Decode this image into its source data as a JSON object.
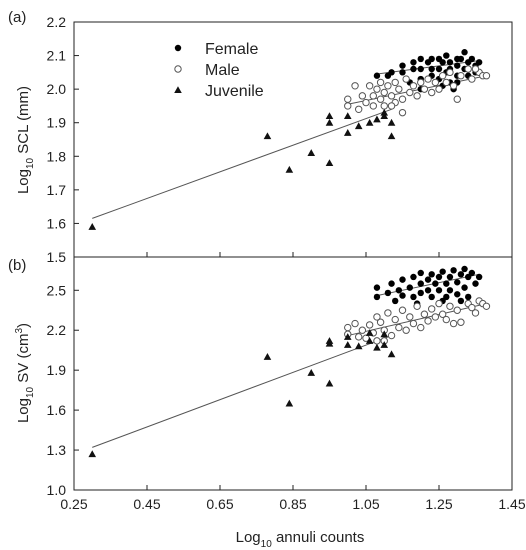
{
  "chart_data": [
    {
      "panel": "(a)",
      "type": "scatter",
      "ylabel": "Log10 SCL (mm)",
      "ylabel_base": "Log",
      "ylabel_sub": "10",
      "ylabel_rest": " SCL (mm)",
      "ylim": [
        1.5,
        2.2
      ],
      "yticks": [
        "2.2",
        "2.1",
        "2.0",
        "1.9",
        "1.8",
        "1.7",
        "1.6",
        "1.5"
      ],
      "ytick_values": [
        2.2,
        2.1,
        2.0,
        1.9,
        1.8,
        1.7,
        1.6,
        1.5
      ],
      "legend": {
        "placement": "top-left",
        "entries": [
          {
            "label": "Female",
            "marker": "filled-circle"
          },
          {
            "label": "Male",
            "marker": "open-circle"
          },
          {
            "label": "Juvenile",
            "marker": "filled-triangle"
          }
        ]
      },
      "series": [
        {
          "name": "Female",
          "marker": "filled-circle",
          "points": [
            [
              1.08,
              2.04
            ],
            [
              1.11,
              2.04
            ],
            [
              1.12,
              2.05
            ],
            [
              1.15,
              2.05
            ],
            [
              1.15,
              2.07
            ],
            [
              1.18,
              2.06
            ],
            [
              1.18,
              2.08
            ],
            [
              1.2,
              2.09
            ],
            [
              1.2,
              2.06
            ],
            [
              1.2,
              2.03
            ],
            [
              1.22,
              2.08
            ],
            [
              1.23,
              2.09
            ],
            [
              1.23,
              2.06
            ],
            [
              1.23,
              2.04
            ],
            [
              1.25,
              2.09
            ],
            [
              1.25,
              2.06
            ],
            [
              1.25,
              2.03
            ],
            [
              1.26,
              2.08
            ],
            [
              1.27,
              2.1
            ],
            [
              1.27,
              2.05
            ],
            [
              1.28,
              2.08
            ],
            [
              1.28,
              2.06
            ],
            [
              1.28,
              2.02
            ],
            [
              1.3,
              2.09
            ],
            [
              1.3,
              2.07
            ],
            [
              1.3,
              2.04
            ],
            [
              1.3,
              2.02
            ],
            [
              1.31,
              2.09
            ],
            [
              1.32,
              2.11
            ],
            [
              1.32,
              2.06
            ],
            [
              1.33,
              2.08
            ],
            [
              1.33,
              2.04
            ],
            [
              1.34,
              2.09
            ],
            [
              1.35,
              2.07
            ],
            [
              1.35,
              2.05
            ],
            [
              1.36,
              2.08
            ],
            [
              1.17,
              2.02
            ],
            [
              1.2,
              2.0
            ],
            [
              1.26,
              2.01
            ],
            [
              1.29,
              2.0
            ]
          ]
        },
        {
          "name": "Male",
          "marker": "open-circle",
          "points": [
            [
              1.0,
              1.97
            ],
            [
              1.0,
              1.95
            ],
            [
              1.02,
              2.01
            ],
            [
              1.03,
              1.94
            ],
            [
              1.04,
              1.98
            ],
            [
              1.05,
              1.96
            ],
            [
              1.06,
              2.01
            ],
            [
              1.07,
              1.98
            ],
            [
              1.07,
              1.95
            ],
            [
              1.08,
              2.0
            ],
            [
              1.09,
              2.02
            ],
            [
              1.09,
              1.97
            ],
            [
              1.1,
              1.99
            ],
            [
              1.1,
              1.95
            ],
            [
              1.11,
              2.01
            ],
            [
              1.12,
              1.98
            ],
            [
              1.13,
              2.02
            ],
            [
              1.13,
              1.96
            ],
            [
              1.14,
              2.0
            ],
            [
              1.15,
              1.97
            ],
            [
              1.16,
              2.03
            ],
            [
              1.17,
              1.99
            ],
            [
              1.18,
              2.01
            ],
            [
              1.19,
              1.98
            ],
            [
              1.2,
              2.02
            ],
            [
              1.21,
              2.0
            ],
            [
              1.22,
              2.03
            ],
            [
              1.23,
              1.99
            ],
            [
              1.24,
              2.02
            ],
            [
              1.25,
              2.0
            ],
            [
              1.26,
              2.04
            ],
            [
              1.27,
              2.02
            ],
            [
              1.28,
              2.05
            ],
            [
              1.29,
              2.01
            ],
            [
              1.3,
              1.97
            ],
            [
              1.31,
              2.04
            ],
            [
              1.33,
              2.06
            ],
            [
              1.34,
              2.03
            ],
            [
              1.36,
              2.05
            ],
            [
              1.37,
              2.04
            ],
            [
              1.38,
              2.04
            ],
            [
              1.35,
              2.06
            ],
            [
              1.12,
              1.95
            ],
            [
              1.15,
              1.93
            ]
          ]
        },
        {
          "name": "Juvenile",
          "marker": "filled-triangle",
          "points": [
            [
              0.3,
              1.59
            ],
            [
              0.78,
              1.86
            ],
            [
              0.84,
              1.76
            ],
            [
              0.9,
              1.81
            ],
            [
              0.95,
              1.78
            ],
            [
              0.95,
              1.9
            ],
            [
              0.95,
              1.92
            ],
            [
              1.0,
              1.87
            ],
            [
              1.0,
              1.92
            ],
            [
              1.03,
              1.89
            ],
            [
              1.06,
              1.9
            ],
            [
              1.08,
              1.91
            ],
            [
              1.1,
              1.92
            ],
            [
              1.12,
              1.86
            ],
            [
              1.12,
              1.9
            ],
            [
              1.1,
              1.93
            ]
          ]
        }
      ],
      "trendlines": [
        {
          "name": "Juvenile fit",
          "x": [
            0.3,
            1.12
          ],
          "y": [
            1.615,
            1.94
          ]
        },
        {
          "name": "Female fit",
          "x": [
            1.08,
            1.36
          ],
          "y": [
            2.045,
            2.085
          ]
        },
        {
          "name": "Male fit",
          "x": [
            1.0,
            1.38
          ],
          "y": [
            1.955,
            2.04
          ]
        }
      ]
    },
    {
      "panel": "(b)",
      "type": "scatter",
      "ylabel": "Log10 SV (cm3)",
      "ylabel_base": "Log",
      "ylabel_sub": "10",
      "ylabel_rest": " SV (cm",
      "ylabel_sup": "3",
      "ylabel_end": ")",
      "ylim": [
        1.0,
        2.75
      ],
      "yticks": [
        "2.5",
        "2.2",
        "1.9",
        "1.6",
        "1.3",
        "1.0"
      ],
      "ytick_values": [
        2.5,
        2.2,
        1.9,
        1.6,
        1.3,
        1.0
      ],
      "xlabel": "Log10 annuli counts",
      "xlabel_base": "Log",
      "xlabel_sub": "10",
      "xlabel_rest": " annuli counts",
      "xlim": [
        0.25,
        1.45
      ],
      "xticks": [
        "0.25",
        "0.45",
        "0.65",
        "0.85",
        "1.05",
        "1.25",
        "1.45"
      ],
      "xtick_values": [
        0.25,
        0.45,
        0.65,
        0.85,
        1.05,
        1.25,
        1.45
      ],
      "series": [
        {
          "name": "Female",
          "marker": "filled-circle",
          "points": [
            [
              1.08,
              2.45
            ],
            [
              1.08,
              2.52
            ],
            [
              1.11,
              2.48
            ],
            [
              1.12,
              2.55
            ],
            [
              1.14,
              2.5
            ],
            [
              1.15,
              2.58
            ],
            [
              1.15,
              2.46
            ],
            [
              1.17,
              2.52
            ],
            [
              1.18,
              2.6
            ],
            [
              1.18,
              2.45
            ],
            [
              1.2,
              2.55
            ],
            [
              1.2,
              2.63
            ],
            [
              1.2,
              2.48
            ],
            [
              1.22,
              2.58
            ],
            [
              1.22,
              2.5
            ],
            [
              1.23,
              2.62
            ],
            [
              1.23,
              2.45
            ],
            [
              1.24,
              2.55
            ],
            [
              1.25,
              2.6
            ],
            [
              1.25,
              2.5
            ],
            [
              1.26,
              2.64
            ],
            [
              1.27,
              2.55
            ],
            [
              1.27,
              2.45
            ],
            [
              1.28,
              2.6
            ],
            [
              1.28,
              2.5
            ],
            [
              1.29,
              2.65
            ],
            [
              1.3,
              2.56
            ],
            [
              1.3,
              2.47
            ],
            [
              1.31,
              2.62
            ],
            [
              1.32,
              2.66
            ],
            [
              1.32,
              2.52
            ],
            [
              1.33,
              2.6
            ],
            [
              1.33,
              2.45
            ],
            [
              1.34,
              2.63
            ],
            [
              1.35,
              2.55
            ],
            [
              1.36,
              2.6
            ],
            [
              1.13,
              2.42
            ],
            [
              1.19,
              2.4
            ],
            [
              1.26,
              2.42
            ],
            [
              1.31,
              2.42
            ]
          ]
        },
        {
          "name": "Male",
          "marker": "open-circle",
          "points": [
            [
              1.0,
              2.22
            ],
            [
              1.0,
              2.17
            ],
            [
              1.02,
              2.25
            ],
            [
              1.03,
              2.15
            ],
            [
              1.04,
              2.2
            ],
            [
              1.05,
              2.14
            ],
            [
              1.06,
              2.24
            ],
            [
              1.07,
              2.18
            ],
            [
              1.08,
              2.3
            ],
            [
              1.08,
              2.12
            ],
            [
              1.09,
              2.26
            ],
            [
              1.1,
              2.2
            ],
            [
              1.11,
              2.33
            ],
            [
              1.12,
              2.16
            ],
            [
              1.13,
              2.28
            ],
            [
              1.14,
              2.22
            ],
            [
              1.15,
              2.35
            ],
            [
              1.16,
              2.2
            ],
            [
              1.17,
              2.3
            ],
            [
              1.18,
              2.25
            ],
            [
              1.19,
              2.38
            ],
            [
              1.2,
              2.22
            ],
            [
              1.21,
              2.32
            ],
            [
              1.22,
              2.27
            ],
            [
              1.23,
              2.36
            ],
            [
              1.24,
              2.3
            ],
            [
              1.25,
              2.4
            ],
            [
              1.26,
              2.32
            ],
            [
              1.27,
              2.28
            ],
            [
              1.28,
              2.38
            ],
            [
              1.29,
              2.25
            ],
            [
              1.3,
              2.35
            ],
            [
              1.31,
              2.26
            ],
            [
              1.33,
              2.4
            ],
            [
              1.34,
              2.37
            ],
            [
              1.36,
              2.42
            ],
            [
              1.37,
              2.4
            ],
            [
              1.38,
              2.38
            ],
            [
              1.35,
              2.33
            ],
            [
              1.1,
              2.12
            ]
          ]
        },
        {
          "name": "Juvenile",
          "marker": "filled-triangle",
          "points": [
            [
              0.3,
              1.27
            ],
            [
              0.78,
              2.0
            ],
            [
              0.84,
              1.65
            ],
            [
              0.9,
              1.88
            ],
            [
              0.95,
              1.8
            ],
            [
              0.95,
              2.1
            ],
            [
              0.95,
              2.12
            ],
            [
              1.0,
              2.09
            ],
            [
              1.0,
              2.15
            ],
            [
              1.03,
              2.08
            ],
            [
              1.06,
              2.12
            ],
            [
              1.08,
              2.07
            ],
            [
              1.1,
              2.09
            ],
            [
              1.12,
              2.02
            ],
            [
              1.1,
              2.17
            ],
            [
              1.06,
              2.18
            ]
          ]
        }
      ],
      "trendlines": [
        {
          "name": "Juvenile fit",
          "x": [
            0.3,
            1.12
          ],
          "y": [
            1.32,
            2.16
          ]
        },
        {
          "name": "Female fit",
          "x": [
            1.08,
            1.36
          ],
          "y": [
            2.46,
            2.62
          ]
        },
        {
          "name": "Male fit",
          "x": [
            1.0,
            1.38
          ],
          "y": [
            2.16,
            2.4
          ]
        }
      ]
    }
  ],
  "colors": {
    "axis": "#222222",
    "female": "#000000",
    "male_stroke": "#555555",
    "juvenile": "#111111",
    "trendline": "#555555"
  }
}
